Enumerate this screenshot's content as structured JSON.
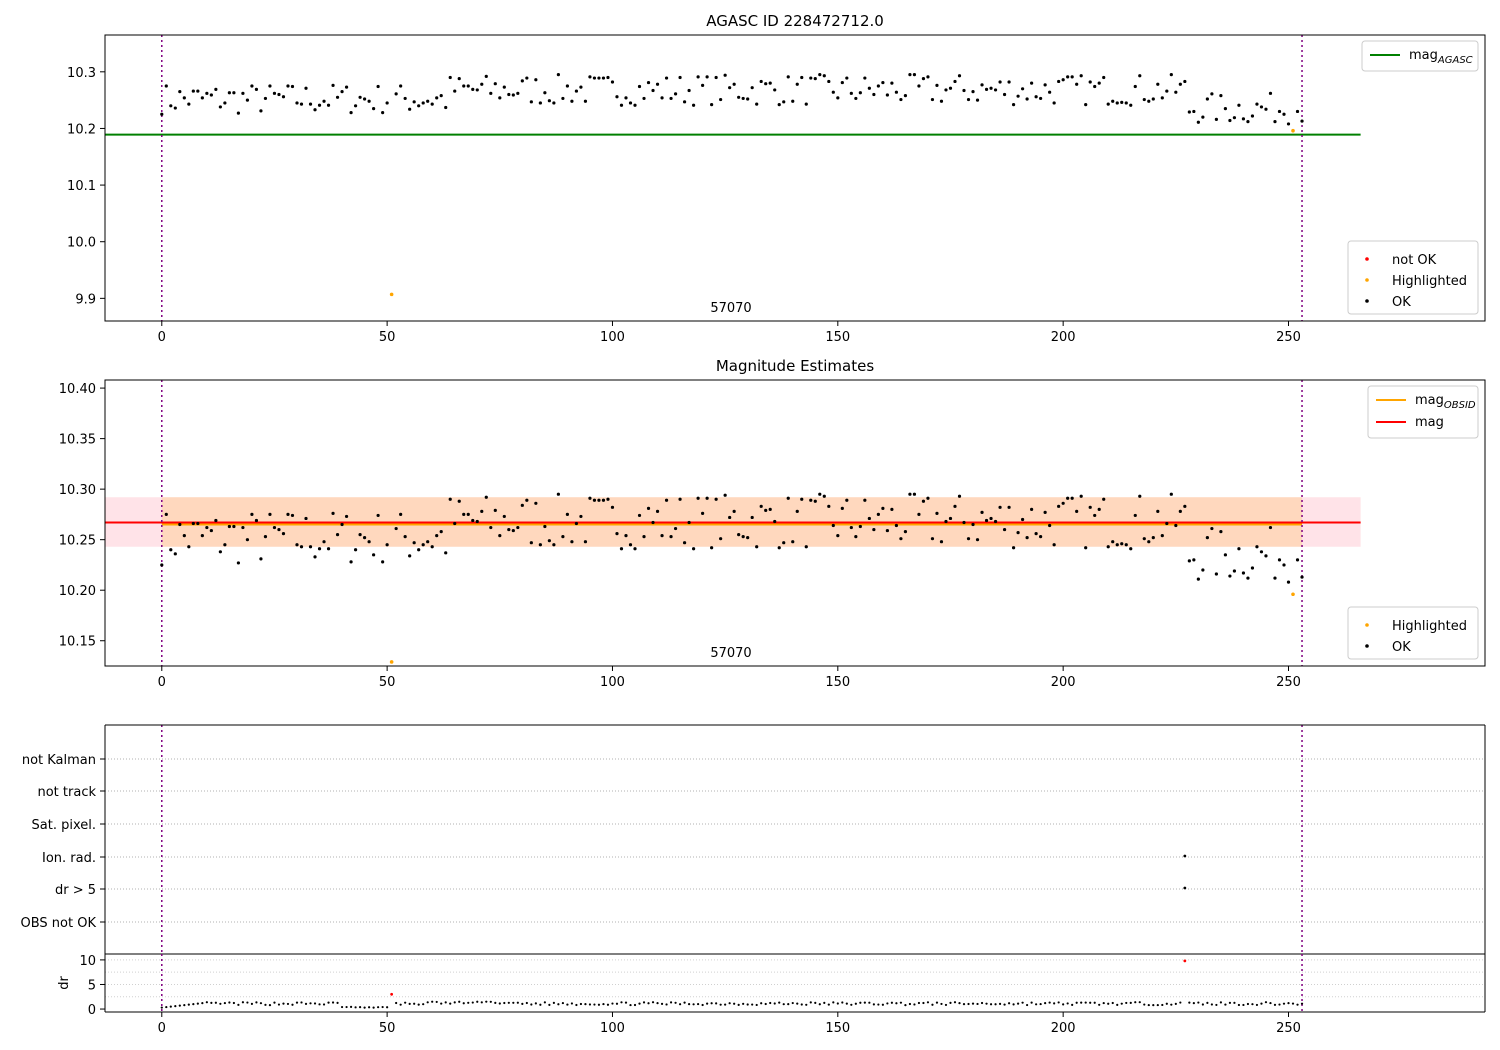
{
  "chart_data": [
    {
      "type": "scatter",
      "title": "AGASC ID 228472712.0",
      "annotation": "57070",
      "xlim": [
        -12.6,
        293.6
      ],
      "ylim": [
        9.86,
        10.365
      ],
      "x_ticks": [
        0,
        50,
        100,
        150,
        200,
        250
      ],
      "y_ticks": [
        9.9,
        10.0,
        10.1,
        10.2,
        10.3
      ],
      "vertical_lines_x": [
        0,
        253
      ],
      "agasc_mag": 10.189,
      "legend_lines": [
        {
          "base": "mag",
          "sub": "AGASC",
          "color": "#008000"
        }
      ],
      "legend_points": [
        {
          "label": "not OK",
          "color": "#ff0000"
        },
        {
          "label": "Highlighted",
          "color": "#ffa500"
        },
        {
          "label": "OK",
          "color": "#000000"
        }
      ],
      "highlighted_points": [
        {
          "x": 51,
          "y": 9.907
        },
        {
          "x": 251,
          "y": 10.196
        }
      ]
    },
    {
      "type": "scatter",
      "title": "Magnitude Estimates",
      "annotation": "57070",
      "xlim": [
        -12.6,
        293.6
      ],
      "ylim": [
        10.125,
        10.408
      ],
      "x_ticks": [
        0,
        50,
        100,
        150,
        200,
        250
      ],
      "y_ticks": [
        10.15,
        10.2,
        10.25,
        10.3,
        10.35,
        10.4
      ],
      "vertical_lines_x": [
        0,
        253
      ],
      "mag": 10.267,
      "mag_obsid": 10.265,
      "mag_band": [
        10.243,
        10.292
      ],
      "legend_lines": [
        {
          "base": "mag",
          "sub": "OBSID",
          "color": "#ffa500"
        },
        {
          "base": "mag",
          "sub": "",
          "color": "#ff0000"
        }
      ],
      "legend_points": [
        {
          "label": "Highlighted",
          "color": "#ffa500"
        },
        {
          "label": "OK",
          "color": "#000000"
        }
      ],
      "highlighted_points": [
        {
          "x": 51,
          "y": 10.129
        },
        {
          "x": 251,
          "y": 10.196
        }
      ]
    },
    {
      "type": "scatter",
      "title": "",
      "flag_labels": [
        "not Kalman",
        "not track",
        "Sat. pixel.",
        "Ion. rad.",
        "dr > 5",
        "OBS not OK"
      ],
      "flag_points": [
        {
          "flag": "Ion. rad.",
          "x": 227
        },
        {
          "flag": "dr > 5",
          "x": 227
        }
      ],
      "xlim": [
        -12.6,
        293.6
      ],
      "vertical_lines_x": [
        0,
        253
      ]
    },
    {
      "type": "scatter",
      "ylabel": "dr",
      "xlim": [
        -12.6,
        293.6
      ],
      "ylim": [
        -0.6,
        11.2
      ],
      "x_ticks": [
        0,
        50,
        100,
        150,
        200,
        250
      ],
      "y_ticks": [
        0,
        5,
        10
      ],
      "vertical_lines_x": [
        0,
        253
      ],
      "outlier_points": [
        {
          "x": 51,
          "y": 3.0,
          "color": "#ff0000"
        },
        {
          "x": 227,
          "y": 9.8,
          "color": "#ff0000"
        }
      ]
    }
  ]
}
